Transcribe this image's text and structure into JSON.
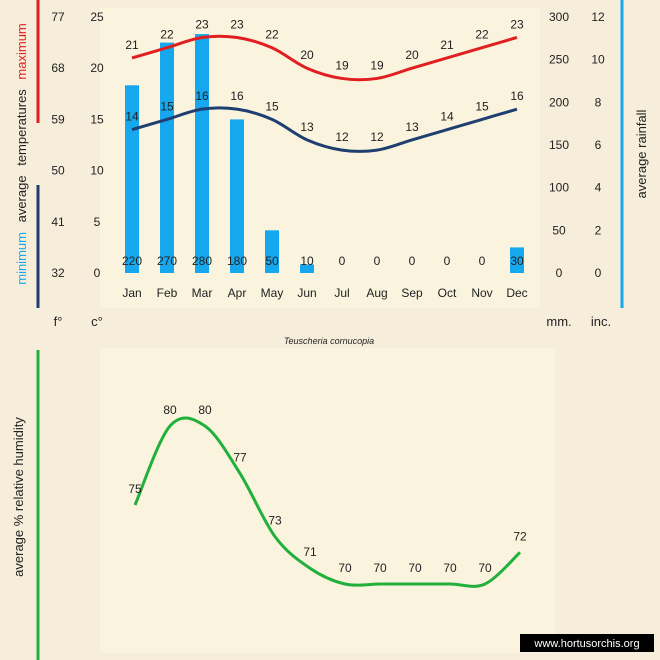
{
  "species": "Teuscheria cornucopia",
  "watermark": "www.hortusorchis.org",
  "colors": {
    "background": "#f6eedb",
    "panel": "#faf3de",
    "max_line": "#e02020",
    "min_line": "#1f3f70",
    "rain_bar": "#16a8ee",
    "humidity_line": "#22b03c",
    "text": "#222222"
  },
  "chart_data": [
    {
      "type": "bar+line",
      "title": "Teuscheria cornucopia",
      "categories": [
        "Jan",
        "Feb",
        "Mar",
        "Apr",
        "May",
        "Jun",
        "Jul",
        "Aug",
        "Sep",
        "Oct",
        "Nov",
        "Dec"
      ],
      "series": [
        {
          "name": "maximum",
          "values": [
            21,
            22,
            23,
            23,
            22,
            20,
            19,
            19,
            20,
            21,
            22,
            23
          ]
        },
        {
          "name": "minimum",
          "values": [
            14,
            15,
            16,
            16,
            15,
            13,
            12,
            12,
            13,
            14,
            15,
            16
          ]
        },
        {
          "name": "average rainfall",
          "values": [
            220,
            270,
            280,
            180,
            50,
            10,
            0,
            0,
            0,
            0,
            0,
            30
          ]
        }
      ],
      "ylabel_left": [
        "minimum",
        "average",
        "temperatures",
        "maximum"
      ],
      "ylabel_right": "average rainfall",
      "axes": {
        "fahrenheit": {
          "label": "f°",
          "ticks": [
            32,
            41,
            50,
            59,
            68,
            77
          ]
        },
        "celsius": {
          "label": "c°",
          "ticks": [
            0,
            5,
            10,
            15,
            20,
            25
          ],
          "ylim": [
            0,
            25
          ]
        },
        "mm": {
          "label": "mm.",
          "ticks": [
            0,
            50,
            100,
            150,
            200,
            250,
            300
          ],
          "ylim": [
            0,
            300
          ]
        },
        "inches": {
          "label": "inc.",
          "ticks": [
            0,
            2,
            4,
            6,
            8,
            10,
            12
          ]
        }
      }
    },
    {
      "type": "line",
      "categories": [
        "Jan",
        "Feb",
        "Mar",
        "Apr",
        "May",
        "Jun",
        "Jul",
        "Aug",
        "Sep",
        "Oct",
        "Nov",
        "Dec"
      ],
      "values": [
        75,
        80,
        80,
        77,
        73,
        71,
        70,
        70,
        70,
        70,
        70,
        72
      ],
      "ylabel": "average %  relative humidity",
      "ylim": [
        67,
        82
      ]
    }
  ]
}
